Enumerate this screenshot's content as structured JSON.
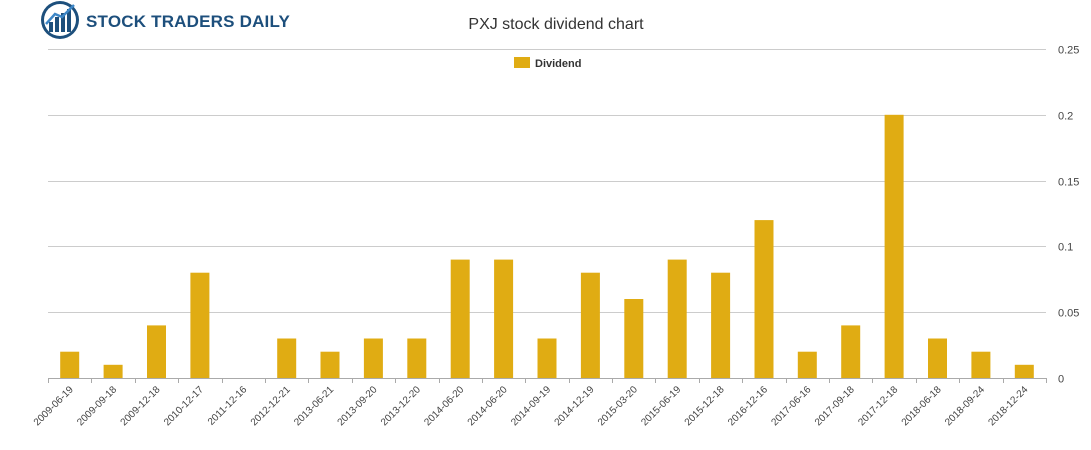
{
  "brand": {
    "name": "STOCK TRADERS DAILY"
  },
  "chart_data": {
    "type": "bar",
    "title": "PXJ stock dividend chart",
    "xlabel": "",
    "ylabel": "",
    "ylim": [
      0,
      0.25
    ],
    "yticks": [
      "0",
      "0.05",
      "0.1",
      "0.15",
      "0.2",
      "0.25"
    ],
    "categories": [
      "2009-06-19",
      "2009-09-18",
      "2009-12-18",
      "2010-12-17",
      "2011-12-16",
      "2012-12-21",
      "2013-06-21",
      "2013-09-20",
      "2013-12-20",
      "2014-06-20",
      "2014-06-20",
      "2014-09-19",
      "2014-12-19",
      "2015-03-20",
      "2015-06-19",
      "2015-12-18",
      "2016-12-16",
      "2017-06-16",
      "2017-09-18",
      "2017-12-18",
      "2018-06-18",
      "2018-09-24",
      "2018-12-24"
    ],
    "series": [
      {
        "name": "Dividend",
        "color": "#e0ac13",
        "values": [
          0.02,
          0.01,
          0.04,
          0.08,
          0,
          0.03,
          0.02,
          0.03,
          0.03,
          0.09,
          0.09,
          0.03,
          0.08,
          0.06,
          0.09,
          0.08,
          0.12,
          0.02,
          0.04,
          0.2,
          0.03,
          0.02,
          0.01
        ]
      }
    ],
    "legend_position": "top-center",
    "grid": true
  }
}
